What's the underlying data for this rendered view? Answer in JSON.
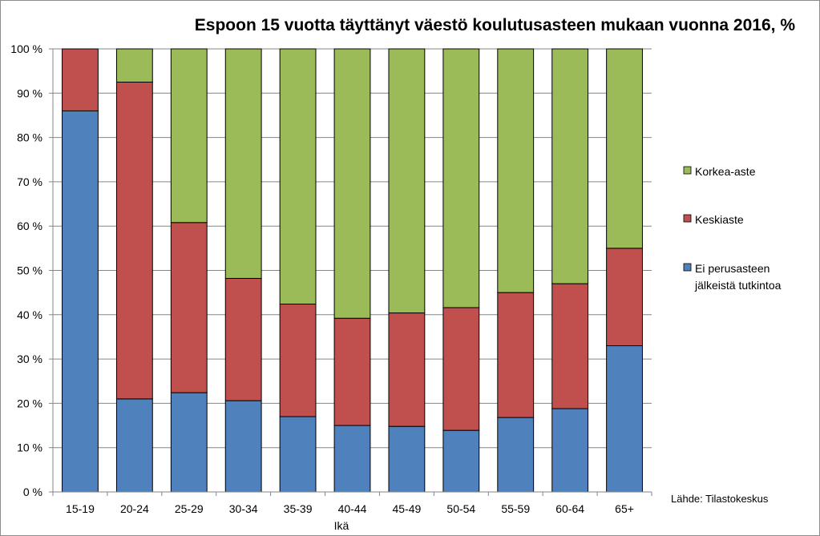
{
  "chart_data": {
    "type": "bar",
    "stacked": true,
    "title": "Espoon 15 vuotta täyttänyt väestö koulutusasteen mukaan vuonna 2016, %",
    "xlabel": "Ikä",
    "ylabel": "",
    "ylim": [
      0,
      100
    ],
    "yticks": [
      "0 %",
      "10 %",
      "20 %",
      "30 %",
      "40 %",
      "50 %",
      "60 %",
      "70 %",
      "80 %",
      "90 %",
      "100 %"
    ],
    "grid": true,
    "legend_position": "right",
    "categories": [
      "15-19",
      "20-24",
      "25-29",
      "30-34",
      "35-39",
      "40-44",
      "45-49",
      "50-54",
      "55-59",
      "60-64",
      "65+"
    ],
    "series": [
      {
        "name": "Ei perusasteen jälkeistä tutkintoa",
        "legend_lines": [
          "Ei perusasteen",
          "jälkeistä tutkintoa"
        ],
        "color": "#4f81bd",
        "values": [
          86.0,
          21.0,
          22.4,
          20.6,
          17.0,
          15.0,
          14.8,
          13.9,
          16.8,
          18.8,
          33.0
        ]
      },
      {
        "name": "Keskiaste",
        "legend_lines": [
          "Keskiaste"
        ],
        "color": "#c0504d",
        "values": [
          14.0,
          71.5,
          38.4,
          27.6,
          25.4,
          24.2,
          25.6,
          27.7,
          28.2,
          28.2,
          22.0
        ]
      },
      {
        "name": "Korkea-aste",
        "legend_lines": [
          "Korkea-aste"
        ],
        "color": "#9bbb59",
        "values": [
          0.0,
          7.5,
          39.2,
          51.8,
          57.6,
          60.8,
          59.6,
          58.4,
          55.0,
          53.0,
          45.0
        ]
      }
    ],
    "source": "Lähde: Tilastokeskus"
  }
}
